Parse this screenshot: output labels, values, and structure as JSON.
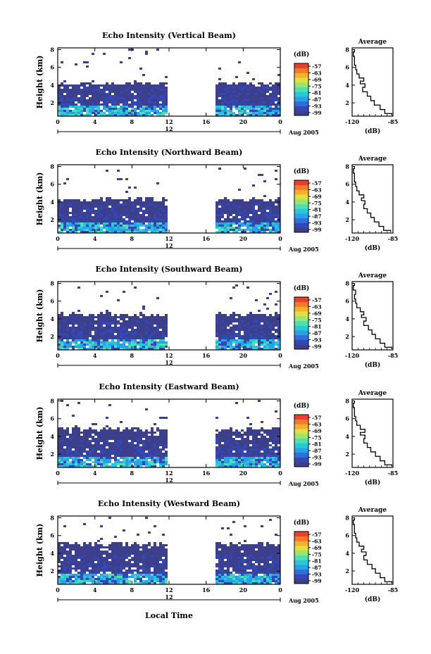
{
  "figure": {
    "xlabel_bottom": "Local Time",
    "day_label": "12",
    "month_label": "Aug 2005",
    "height_label": "Height (km)",
    "colorbar_unit": "(dB)",
    "colorbar_ticks": [
      "-57",
      "-63",
      "-69",
      "-75",
      "-81",
      "-87",
      "-93",
      "-99"
    ],
    "colorbar_colors": [
      "#3b3f8c",
      "#3448b5",
      "#2e6fdc",
      "#2aa0e6",
      "#25c9d8",
      "#4fe0b0",
      "#9ae470",
      "#e0e040",
      "#f6b030",
      "#f27a28",
      "#e8402a"
    ],
    "avg_title": "Average",
    "avg_xlabel": "(dB)",
    "avg_xticks": [
      "-120",
      "-85"
    ]
  },
  "chart_data": [
    {
      "type": "heatmap",
      "title": "Echo Intensity (Vertical Beam)",
      "x_ticks": [
        "0",
        "4",
        "8",
        "12",
        "16",
        "20",
        "0"
      ],
      "y_ticks": [
        "2",
        "4",
        "6",
        "8"
      ],
      "xlim": [
        0,
        24
      ],
      "ylim": [
        0.5,
        8.2
      ],
      "colorbar_range_db": [
        -99,
        -57
      ],
      "data_gap_hours": [
        12,
        16.8
      ],
      "echo_top_km": 4.3,
      "average_profile": {
        "title": "Average",
        "xlabel": "(dB)",
        "xlim": [
          -120,
          -85
        ],
        "ylim": [
          0.5,
          8.2
        ],
        "height_km": [
          0.6,
          1.0,
          1.5,
          2.0,
          2.5,
          3.0,
          3.5,
          4.0,
          4.3,
          4.6,
          5.0,
          5.5,
          6.0,
          6.5,
          7.0,
          7.5,
          8.0
        ],
        "db": [
          -86,
          -92,
          -96,
          -101,
          -104,
          -107,
          -111,
          -109,
          -113,
          -110,
          -114,
          -116,
          -117,
          -118,
          -118,
          -119,
          -118
        ]
      }
    },
    {
      "type": "heatmap",
      "title": "Echo Intensity (Northward Beam)",
      "x_ticks": [
        "0",
        "4",
        "8",
        "12",
        "16",
        "20",
        "0"
      ],
      "y_ticks": [
        "2",
        "4",
        "6",
        "8"
      ],
      "xlim": [
        0,
        24
      ],
      "ylim": [
        0.5,
        8.2
      ],
      "colorbar_range_db": [
        -99,
        -57
      ],
      "data_gap_hours": [
        12,
        16.8
      ],
      "echo_top_km": 4.4,
      "average_profile": {
        "title": "Average",
        "xlabel": "(dB)",
        "xlim": [
          -120,
          -85
        ],
        "ylim": [
          0.5,
          8.2
        ],
        "height_km": [
          0.6,
          1.0,
          1.5,
          2.0,
          2.5,
          3.0,
          3.5,
          4.0,
          4.3,
          4.6,
          5.0,
          5.5,
          6.0,
          6.5,
          7.0,
          7.5,
          8.0
        ],
        "db": [
          -87,
          -93,
          -97,
          -101,
          -104,
          -107,
          -110,
          -109,
          -112,
          -110,
          -114,
          -116,
          -117,
          -118,
          -118,
          -119,
          -118
        ]
      }
    },
    {
      "type": "heatmap",
      "title": "Echo Intensity (Southward Beam)",
      "x_ticks": [
        "0",
        "4",
        "8",
        "12",
        "16",
        "20",
        "0"
      ],
      "y_ticks": [
        "2",
        "4",
        "6",
        "8"
      ],
      "xlim": [
        0,
        24
      ],
      "ylim": [
        0.5,
        8.2
      ],
      "colorbar_range_db": [
        -99,
        -57
      ],
      "data_gap_hours": [
        12,
        16.8
      ],
      "echo_top_km": 4.6,
      "average_profile": {
        "title": "Average",
        "xlabel": "(dB)",
        "xlim": [
          -120,
          -85
        ],
        "ylim": [
          0.5,
          8.2
        ],
        "height_km": [
          0.6,
          1.0,
          1.5,
          2.0,
          2.5,
          3.0,
          3.5,
          4.0,
          4.3,
          4.6,
          5.0,
          5.5,
          6.0,
          6.5,
          7.0,
          7.5,
          8.0
        ],
        "db": [
          -86,
          -92,
          -96,
          -100,
          -103,
          -106,
          -110,
          -108,
          -112,
          -110,
          -113,
          -116,
          -117,
          -118,
          -117,
          -119,
          -118
        ]
      }
    },
    {
      "type": "heatmap",
      "title": "Echo Intensity (Eastward Beam)",
      "x_ticks": [
        "0",
        "4",
        "8",
        "12",
        "16",
        "20",
        "0"
      ],
      "y_ticks": [
        "2",
        "4",
        "6",
        "8"
      ],
      "xlim": [
        0,
        24
      ],
      "ylim": [
        0.5,
        8.2
      ],
      "colorbar_range_db": [
        -99,
        -57
      ],
      "data_gap_hours": [
        12,
        16.8
      ],
      "echo_top_km": 5.0,
      "average_profile": {
        "title": "Average",
        "xlabel": "(dB)",
        "xlim": [
          -120,
          -85
        ],
        "ylim": [
          0.5,
          8.2
        ],
        "height_km": [
          0.6,
          1.0,
          1.5,
          2.0,
          2.5,
          3.0,
          3.5,
          4.0,
          4.3,
          4.6,
          5.0,
          5.5,
          6.0,
          6.5,
          7.0,
          7.5,
          8.0
        ],
        "db": [
          -86,
          -92,
          -96,
          -100,
          -104,
          -107,
          -110,
          -109,
          -113,
          -109,
          -113,
          -116,
          -117,
          -118,
          -118,
          -119,
          -118
        ]
      }
    },
    {
      "type": "heatmap",
      "title": "Echo Intensity (Westward Beam)",
      "x_ticks": [
        "0",
        "4",
        "8",
        "12",
        "16",
        "20",
        "0"
      ],
      "y_ticks": [
        "2",
        "4",
        "6",
        "8"
      ],
      "xlim": [
        0,
        24
      ],
      "ylim": [
        0.5,
        8.2
      ],
      "colorbar_range_db": [
        -99,
        -57
      ],
      "data_gap_hours": [
        12,
        16.8
      ],
      "echo_top_km": 5.2,
      "average_profile": {
        "title": "Average",
        "xlabel": "(dB)",
        "xlim": [
          -120,
          -85
        ],
        "ylim": [
          0.5,
          8.2
        ],
        "height_km": [
          0.6,
          1.0,
          1.5,
          2.0,
          2.5,
          3.0,
          3.5,
          4.0,
          4.3,
          4.6,
          5.0,
          5.5,
          6.0,
          6.5,
          7.0,
          7.5,
          8.0
        ],
        "db": [
          -86,
          -92,
          -96,
          -100,
          -103,
          -107,
          -110,
          -108,
          -112,
          -110,
          -114,
          -116,
          -117,
          -118,
          -118,
          -119,
          -118
        ]
      }
    }
  ]
}
